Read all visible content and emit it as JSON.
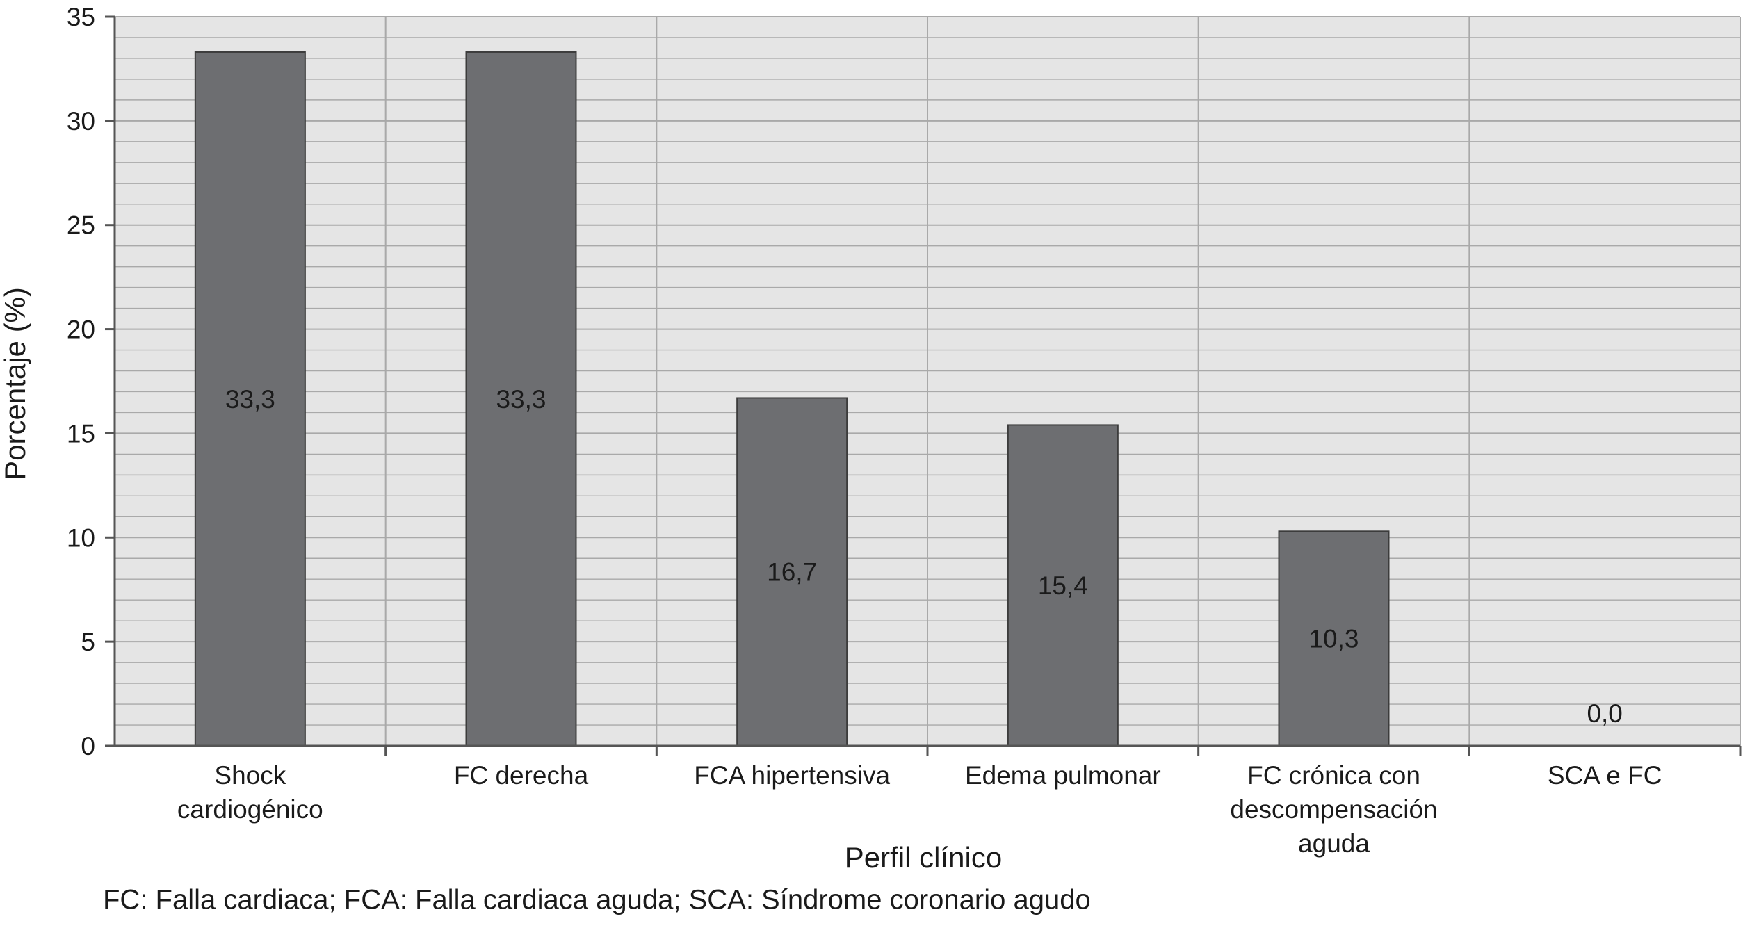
{
  "chart_data": {
    "type": "bar",
    "title": "",
    "xlabel": "Perfil clínico",
    "ylabel": "Porcentaje (%)",
    "ylim": [
      0,
      35
    ],
    "y_ticks": [
      "0",
      "5",
      "10",
      "15",
      "20",
      "25",
      "30",
      "35"
    ],
    "grid": true,
    "categories": [
      [
        "Shock",
        "cardiogénico"
      ],
      [
        "FC derecha"
      ],
      [
        "FCA hipertensiva"
      ],
      [
        "Edema pulmonar"
      ],
      [
        "FC crónica con",
        "descompensación",
        "aguda"
      ],
      [
        "SCA e FC"
      ]
    ],
    "values": [
      33.3,
      33.3,
      16.7,
      15.4,
      10.3,
      0.0
    ],
    "value_labels": [
      "33,3",
      "33,3",
      "16,7",
      "15,4",
      "10,3",
      "0,0"
    ],
    "colors": {
      "bar": "#6d6e71",
      "bar_stroke": "#3c3c3c",
      "plot_bg": "#e5e5e5",
      "grid": "#a9a9a9",
      "axis": "#555555"
    }
  },
  "footnote": "FC: Falla cardiaca; FCA: Falla cardiaca aguda; SCA: Síndrome coronario agudo"
}
